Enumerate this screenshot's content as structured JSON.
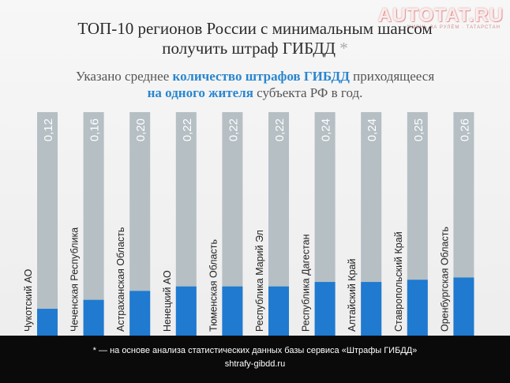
{
  "logo": {
    "text": "AUTOTAT.RU",
    "sub": "ЖИЗНЬ ЗА РУЛЁМ · ТАТАРСТАН"
  },
  "header": {
    "title_line1": "ТОП-10 регионов России с минимальным шансом",
    "title_line2": "получить штраф ГИБДД",
    "title_star": "*",
    "subtitle_part1": "Указано среднее ",
    "subtitle_hl1": "количество штрафов ГИБДД",
    "subtitle_part2": " приходящееся",
    "subtitle_hl2": "на одного жителя",
    "subtitle_part3": " субъекта РФ в год."
  },
  "chart_data": {
    "type": "bar",
    "categories": [
      "Чукотский АО",
      "Чеченская Республика",
      "Астраханская Область",
      "Ненецкий АО",
      "Тюменская Область",
      "Республика Марий Эл",
      "Республика Дагестан",
      "Алтайский Край",
      "Ставропольский Край",
      "Оренбургская Область"
    ],
    "values": [
      0.12,
      0.16,
      0.2,
      0.22,
      0.22,
      0.22,
      0.24,
      0.24,
      0.25,
      0.26
    ],
    "value_labels": [
      "0,12",
      "0,16",
      "0,20",
      "0,22",
      "0,22",
      "0,22",
      "0,24",
      "0,24",
      "0,25",
      "0,26"
    ],
    "ylim": [
      0,
      1
    ],
    "grid": false,
    "colors": {
      "bar": "#1f7ad0",
      "track": "#b5bfc4",
      "value_text": "#ffffff",
      "label_text": "#222222"
    }
  },
  "footer": {
    "footnote": "* — на основе анализа статистических данных базы сервиса «Штрафы ГИБДД»",
    "url": "shtrafy-gibdd.ru"
  }
}
